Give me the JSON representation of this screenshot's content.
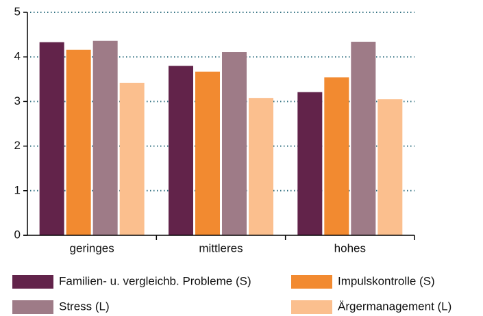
{
  "chart_data": {
    "type": "bar",
    "categories": [
      "geringes",
      "mittleres",
      "hohes"
    ],
    "series": [
      {
        "name": "Familien- u. vergleichb. Probleme (S)",
        "color": "#62234a",
        "values": [
          4.33,
          3.8,
          3.21
        ]
      },
      {
        "name": "Impulskontrolle (S)",
        "color": "#f28a30",
        "values": [
          4.16,
          3.67,
          3.54
        ]
      },
      {
        "name": "Stress (L)",
        "color": "#9e7b87",
        "values": [
          4.36,
          4.11,
          4.34
        ]
      },
      {
        "name": "Ärgermanagement (L)",
        "color": "#fbbf8e",
        "values": [
          3.42,
          3.08,
          3.05
        ]
      }
    ],
    "ylim": [
      0,
      5
    ],
    "yticks": [
      0,
      1,
      2,
      3,
      4,
      5
    ],
    "grid": true
  }
}
